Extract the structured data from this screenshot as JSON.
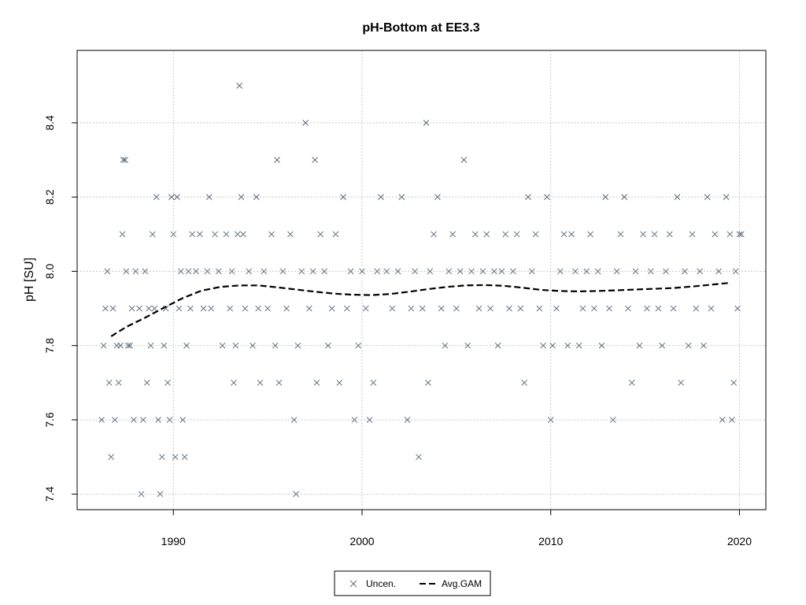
{
  "chart_data": {
    "type": "scatter",
    "title": "pH-Bottom at EE3.3",
    "xlabel": "",
    "ylabel": "pH [SU]",
    "xlim": [
      1984.9,
      2021.4
    ],
    "ylim": [
      7.358,
      8.595
    ],
    "x_ticks": [
      1990,
      2000,
      2010,
      2020
    ],
    "y_ticks": [
      7.4,
      7.6,
      7.8,
      8.0,
      8.2,
      8.4
    ],
    "grid": true,
    "legend_position": "bottom",
    "legend": [
      {
        "label": "Uncen.",
        "symbol": "x",
        "color": "#5a6b7b"
      },
      {
        "label": "Avg.GAM",
        "symbol": "dashed-line",
        "color": "#000000"
      }
    ],
    "series": [
      {
        "name": "Uncen.",
        "color": "#5a6b7b",
        "points": [
          [
            1986.2,
            7.6
          ],
          [
            1986.3,
            7.8
          ],
          [
            1986.4,
            7.9
          ],
          [
            1986.5,
            8.0
          ],
          [
            1986.6,
            7.7
          ],
          [
            1986.7,
            7.5
          ],
          [
            1986.8,
            7.9
          ],
          [
            1986.9,
            7.6
          ],
          [
            1987.0,
            7.8
          ],
          [
            1987.1,
            7.7
          ],
          [
            1987.2,
            7.8
          ],
          [
            1987.3,
            8.1
          ],
          [
            1987.35,
            8.3
          ],
          [
            1987.45,
            8.3
          ],
          [
            1987.5,
            8.0
          ],
          [
            1987.6,
            7.8
          ],
          [
            1987.7,
            7.8
          ],
          [
            1987.8,
            7.9
          ],
          [
            1987.9,
            7.6
          ],
          [
            1988.0,
            8.0
          ],
          [
            1988.2,
            7.9
          ],
          [
            1988.3,
            7.4
          ],
          [
            1988.4,
            7.6
          ],
          [
            1988.5,
            8.0
          ],
          [
            1988.6,
            7.7
          ],
          [
            1988.7,
            7.9
          ],
          [
            1988.8,
            7.8
          ],
          [
            1988.9,
            8.1
          ],
          [
            1989.0,
            7.9
          ],
          [
            1989.1,
            8.2
          ],
          [
            1989.2,
            7.6
          ],
          [
            1989.3,
            7.4
          ],
          [
            1989.4,
            7.5
          ],
          [
            1989.5,
            7.8
          ],
          [
            1989.6,
            7.9
          ],
          [
            1989.7,
            7.7
          ],
          [
            1989.8,
            7.6
          ],
          [
            1989.9,
            8.2
          ],
          [
            1990.0,
            8.1
          ],
          [
            1990.1,
            7.5
          ],
          [
            1990.2,
            8.2
          ],
          [
            1990.3,
            7.9
          ],
          [
            1990.4,
            8.0
          ],
          [
            1990.5,
            7.6
          ],
          [
            1990.6,
            7.5
          ],
          [
            1990.7,
            7.8
          ],
          [
            1990.8,
            8.0
          ],
          [
            1990.9,
            7.9
          ],
          [
            1991.0,
            8.1
          ],
          [
            1991.2,
            8.0
          ],
          [
            1991.4,
            8.1
          ],
          [
            1991.6,
            7.9
          ],
          [
            1991.8,
            8.0
          ],
          [
            1991.9,
            8.2
          ],
          [
            1992.0,
            7.9
          ],
          [
            1992.2,
            8.1
          ],
          [
            1992.4,
            8.0
          ],
          [
            1992.6,
            7.8
          ],
          [
            1992.8,
            8.1
          ],
          [
            1993.0,
            7.9
          ],
          [
            1993.1,
            8.0
          ],
          [
            1993.2,
            7.7
          ],
          [
            1993.3,
            7.8
          ],
          [
            1993.4,
            8.1
          ],
          [
            1993.5,
            8.5
          ],
          [
            1993.6,
            8.2
          ],
          [
            1993.7,
            8.1
          ],
          [
            1993.8,
            7.9
          ],
          [
            1994.0,
            8.0
          ],
          [
            1994.2,
            7.8
          ],
          [
            1994.4,
            8.2
          ],
          [
            1994.5,
            7.9
          ],
          [
            1994.6,
            7.7
          ],
          [
            1994.8,
            8.0
          ],
          [
            1995.0,
            7.9
          ],
          [
            1995.2,
            8.1
          ],
          [
            1995.4,
            7.8
          ],
          [
            1995.5,
            8.3
          ],
          [
            1995.6,
            7.7
          ],
          [
            1995.8,
            8.0
          ],
          [
            1996.0,
            7.9
          ],
          [
            1996.2,
            8.1
          ],
          [
            1996.4,
            7.6
          ],
          [
            1996.5,
            7.4
          ],
          [
            1996.6,
            7.8
          ],
          [
            1996.8,
            8.0
          ],
          [
            1997.0,
            8.4
          ],
          [
            1997.2,
            7.9
          ],
          [
            1997.4,
            8.0
          ],
          [
            1997.5,
            8.3
          ],
          [
            1997.6,
            7.7
          ],
          [
            1997.8,
            8.1
          ],
          [
            1998.0,
            8.0
          ],
          [
            1998.2,
            7.8
          ],
          [
            1998.4,
            7.9
          ],
          [
            1998.6,
            8.1
          ],
          [
            1998.8,
            7.7
          ],
          [
            1999.0,
            8.2
          ],
          [
            1999.2,
            7.9
          ],
          [
            1999.4,
            8.0
          ],
          [
            1999.6,
            7.6
          ],
          [
            1999.8,
            7.8
          ],
          [
            2000.0,
            8.0
          ],
          [
            2000.2,
            7.9
          ],
          [
            2000.4,
            7.6
          ],
          [
            2000.6,
            7.7
          ],
          [
            2000.8,
            8.0
          ],
          [
            2001.0,
            8.2
          ],
          [
            2001.3,
            8.0
          ],
          [
            2001.6,
            7.9
          ],
          [
            2001.9,
            8.0
          ],
          [
            2002.1,
            8.2
          ],
          [
            2002.4,
            7.6
          ],
          [
            2002.6,
            7.9
          ],
          [
            2002.8,
            8.0
          ],
          [
            2003.0,
            7.5
          ],
          [
            2003.2,
            7.9
          ],
          [
            2003.4,
            8.4
          ],
          [
            2003.5,
            7.7
          ],
          [
            2003.6,
            8.0
          ],
          [
            2003.8,
            8.1
          ],
          [
            2004.0,
            8.2
          ],
          [
            2004.2,
            7.9
          ],
          [
            2004.4,
            7.8
          ],
          [
            2004.6,
            8.0
          ],
          [
            2004.8,
            8.1
          ],
          [
            2005.0,
            7.9
          ],
          [
            2005.2,
            8.0
          ],
          [
            2005.4,
            8.3
          ],
          [
            2005.6,
            7.8
          ],
          [
            2005.8,
            8.0
          ],
          [
            2006.0,
            8.1
          ],
          [
            2006.2,
            7.9
          ],
          [
            2006.4,
            8.0
          ],
          [
            2006.6,
            8.1
          ],
          [
            2006.8,
            7.9
          ],
          [
            2007.0,
            8.0
          ],
          [
            2007.2,
            7.8
          ],
          [
            2007.4,
            8.0
          ],
          [
            2007.6,
            8.1
          ],
          [
            2007.8,
            7.9
          ],
          [
            2008.0,
            8.0
          ],
          [
            2008.2,
            8.1
          ],
          [
            2008.4,
            7.9
          ],
          [
            2008.6,
            7.7
          ],
          [
            2008.8,
            8.2
          ],
          [
            2009.0,
            8.0
          ],
          [
            2009.2,
            8.1
          ],
          [
            2009.4,
            7.9
          ],
          [
            2009.6,
            7.8
          ],
          [
            2009.8,
            8.2
          ],
          [
            2010.0,
            7.6
          ],
          [
            2010.1,
            7.8
          ],
          [
            2010.3,
            7.9
          ],
          [
            2010.5,
            8.0
          ],
          [
            2010.7,
            8.1
          ],
          [
            2010.9,
            7.8
          ],
          [
            2011.1,
            8.1
          ],
          [
            2011.3,
            8.0
          ],
          [
            2011.5,
            7.8
          ],
          [
            2011.7,
            7.9
          ],
          [
            2011.9,
            8.0
          ],
          [
            2012.1,
            8.1
          ],
          [
            2012.3,
            7.9
          ],
          [
            2012.5,
            8.0
          ],
          [
            2012.7,
            7.8
          ],
          [
            2012.9,
            8.2
          ],
          [
            2013.1,
            7.9
          ],
          [
            2013.3,
            7.6
          ],
          [
            2013.5,
            8.0
          ],
          [
            2013.7,
            8.1
          ],
          [
            2013.9,
            8.2
          ],
          [
            2014.1,
            7.9
          ],
          [
            2014.3,
            7.7
          ],
          [
            2014.5,
            8.0
          ],
          [
            2014.7,
            7.8
          ],
          [
            2014.9,
            8.1
          ],
          [
            2015.1,
            7.9
          ],
          [
            2015.3,
            8.0
          ],
          [
            2015.5,
            8.1
          ],
          [
            2015.7,
            7.9
          ],
          [
            2015.9,
            7.8
          ],
          [
            2016.1,
            8.0
          ],
          [
            2016.3,
            8.1
          ],
          [
            2016.5,
            7.9
          ],
          [
            2016.7,
            8.2
          ],
          [
            2016.9,
            7.7
          ],
          [
            2017.1,
            8.0
          ],
          [
            2017.3,
            7.8
          ],
          [
            2017.5,
            8.1
          ],
          [
            2017.7,
            7.9
          ],
          [
            2017.9,
            8.0
          ],
          [
            2018.1,
            7.8
          ],
          [
            2018.3,
            8.2
          ],
          [
            2018.5,
            7.9
          ],
          [
            2018.7,
            8.1
          ],
          [
            2018.9,
            8.0
          ],
          [
            2019.1,
            7.6
          ],
          [
            2019.3,
            8.2
          ],
          [
            2019.5,
            8.1
          ],
          [
            2019.6,
            7.6
          ],
          [
            2019.7,
            7.7
          ],
          [
            2019.8,
            8.0
          ],
          [
            2019.9,
            7.9
          ],
          [
            2020.0,
            8.1
          ],
          [
            2020.1,
            8.1
          ]
        ]
      },
      {
        "name": "Avg.GAM",
        "color": "#000000",
        "style": "dashed",
        "points": [
          [
            1986.7,
            7.825
          ],
          [
            1987.5,
            7.85
          ],
          [
            1988.5,
            7.875
          ],
          [
            1989.5,
            7.902
          ],
          [
            1990.5,
            7.928
          ],
          [
            1991.5,
            7.948
          ],
          [
            1992.5,
            7.958
          ],
          [
            1993.5,
            7.962
          ],
          [
            1994.5,
            7.962
          ],
          [
            1995.5,
            7.957
          ],
          [
            1996.5,
            7.951
          ],
          [
            1997.5,
            7.945
          ],
          [
            1998.5,
            7.94
          ],
          [
            1999.5,
            7.937
          ],
          [
            2000.5,
            7.936
          ],
          [
            2001.5,
            7.939
          ],
          [
            2002.5,
            7.945
          ],
          [
            2003.5,
            7.952
          ],
          [
            2004.5,
            7.958
          ],
          [
            2005.5,
            7.962
          ],
          [
            2006.5,
            7.963
          ],
          [
            2007.5,
            7.961
          ],
          [
            2008.5,
            7.956
          ],
          [
            2009.5,
            7.95
          ],
          [
            2010.5,
            7.947
          ],
          [
            2011.5,
            7.946
          ],
          [
            2012.5,
            7.947
          ],
          [
            2013.5,
            7.949
          ],
          [
            2014.5,
            7.951
          ],
          [
            2015.5,
            7.953
          ],
          [
            2016.5,
            7.955
          ],
          [
            2017.5,
            7.959
          ],
          [
            2018.5,
            7.964
          ],
          [
            2019.5,
            7.969
          ]
        ]
      }
    ]
  }
}
